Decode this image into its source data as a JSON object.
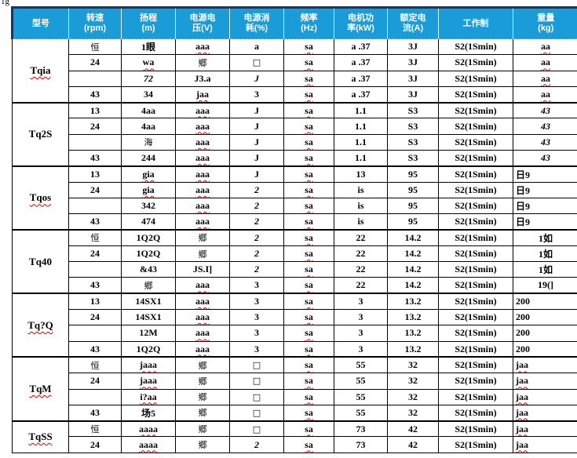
{
  "page": {
    "corner_mark": "1g"
  },
  "colors": {
    "header_bg": "#199CD8",
    "header_border": "#17375E",
    "wavy_underline": "#E00000"
  },
  "table": {
    "headers": [
      {
        "line1": "型号",
        "line2": ""
      },
      {
        "line1": "转速",
        "line2": "(rpm)"
      },
      {
        "line1": "扬程",
        "line2": "(m)"
      },
      {
        "line1": "电源电",
        "line2": "压(V)"
      },
      {
        "line1": "电源消",
        "line2": "耗(%)"
      },
      {
        "line1": "频率",
        "line2": "(Hz)"
      },
      {
        "line1": "电机功",
        "line2": "率(kW)"
      },
      {
        "line1": "额定电",
        "line2": "流(A)"
      },
      {
        "line1": "工作制",
        "line2": ""
      },
      {
        "line1": "重量",
        "line2": "(kg)"
      }
    ],
    "groups": [
      {
        "model": "Tqia",
        "wavy": true,
        "rows": [
          [
            {
              "t": "恒",
              "f": "k"
            },
            {
              "t": "1眼"
            },
            {
              "t": "aaa",
              "f": "w"
            },
            {
              "t": "a"
            },
            {
              "t": "sa",
              "f": "w"
            },
            {
              "t": "a .37"
            },
            {
              "t": "3J"
            },
            {
              "t": "S2(1Smin)"
            },
            {
              "t": "aa",
              "f": "w"
            }
          ],
          [
            {
              "t": "24"
            },
            {
              "t": "wa",
              "f": "w"
            },
            {
              "t": "郷",
              "f": "k"
            },
            {
              "t": "□",
              "f": "k"
            },
            {
              "t": "sa",
              "f": "w"
            },
            {
              "t": "a .37"
            },
            {
              "t": "3J"
            },
            {
              "t": "S2(1Smin)"
            },
            {
              "t": "aa",
              "f": "w"
            }
          ],
          [
            {
              "t": ""
            },
            {
              "t": "72",
              "f": "i"
            },
            {
              "t": "J3.a"
            },
            {
              "t": "J",
              "f": "i"
            },
            {
              "t": "sa",
              "f": "w"
            },
            {
              "t": "a .37"
            },
            {
              "t": "3J"
            },
            {
              "t": "S2(1Smin)"
            },
            {
              "t": "aa",
              "f": "w"
            }
          ],
          [
            {
              "t": "43"
            },
            {
              "t": "34"
            },
            {
              "t": "jaa",
              "f": "w"
            },
            {
              "t": "3"
            },
            {
              "t": "sa",
              "f": "w"
            },
            {
              "t": "a .37"
            },
            {
              "t": "3J"
            },
            {
              "t": "S2(1Smin)"
            },
            {
              "t": "aa",
              "f": "w"
            }
          ]
        ]
      },
      {
        "model": "Tq2S",
        "wavy": false,
        "rows": [
          [
            {
              "t": "13"
            },
            {
              "t": "4aa"
            },
            {
              "t": "aaa",
              "f": "w"
            },
            {
              "t": "J"
            },
            {
              "t": "sa",
              "f": "w"
            },
            {
              "t": "1.1"
            },
            {
              "t": "S3"
            },
            {
              "t": "S2(1Smin)"
            },
            {
              "t": "43",
              "f": "i"
            }
          ],
          [
            {
              "t": "24"
            },
            {
              "t": "4aa"
            },
            {
              "t": "aaa",
              "f": "w"
            },
            {
              "t": "J"
            },
            {
              "t": "sa",
              "f": "w"
            },
            {
              "t": "1.1"
            },
            {
              "t": "S3"
            },
            {
              "t": "S2(1Smin)"
            },
            {
              "t": "43",
              "f": "i"
            }
          ],
          [
            {
              "t": ""
            },
            {
              "t": "海",
              "f": "k"
            },
            {
              "t": "aaa",
              "f": "w"
            },
            {
              "t": "J"
            },
            {
              "t": "sa",
              "f": "w"
            },
            {
              "t": "1.1"
            },
            {
              "t": "S3"
            },
            {
              "t": "S2(1Smin)"
            },
            {
              "t": "43",
              "f": "i"
            }
          ],
          [
            {
              "t": "43"
            },
            {
              "t": "244"
            },
            {
              "t": "aaa",
              "f": "w"
            },
            {
              "t": "J"
            },
            {
              "t": "sa",
              "f": "w"
            },
            {
              "t": "1.1"
            },
            {
              "t": "S3"
            },
            {
              "t": "S2(1Smin)"
            },
            {
              "t": "43",
              "f": "i"
            }
          ]
        ]
      },
      {
        "model": "Tqos",
        "wavy": true,
        "rows": [
          [
            {
              "t": "13"
            },
            {
              "t": "gia",
              "f": "w"
            },
            {
              "t": "aaa",
              "f": "w"
            },
            {
              "t": "J"
            },
            {
              "t": "sa",
              "f": "w"
            },
            {
              "t": "13"
            },
            {
              "t": "95"
            },
            {
              "t": "S2(1Smin)"
            },
            {
              "t": "日9",
              "f": "l"
            }
          ],
          [
            {
              "t": "24"
            },
            {
              "t": "gia",
              "f": "w"
            },
            {
              "t": "aaa",
              "f": "w"
            },
            {
              "t": "2",
              "f": "i"
            },
            {
              "t": "sa",
              "f": "w"
            },
            {
              "t": "is"
            },
            {
              "t": "95"
            },
            {
              "t": "S2(1Smin)"
            },
            {
              "t": "日9",
              "f": "l"
            }
          ],
          [
            {
              "t": ""
            },
            {
              "t": "342"
            },
            {
              "t": "aaa",
              "f": "w"
            },
            {
              "t": "2",
              "f": "i"
            },
            {
              "t": "sa",
              "f": "w"
            },
            {
              "t": "is"
            },
            {
              "t": "95"
            },
            {
              "t": "S2(1Smin)"
            },
            {
              "t": "日9",
              "f": "l"
            }
          ],
          [
            {
              "t": "43"
            },
            {
              "t": "474"
            },
            {
              "t": "aaa",
              "f": "w"
            },
            {
              "t": "2",
              "f": "i"
            },
            {
              "t": "sa",
              "f": "w"
            },
            {
              "t": "is"
            },
            {
              "t": "95"
            },
            {
              "t": "S2(1Smin)"
            },
            {
              "t": "日9",
              "f": "l"
            }
          ]
        ]
      },
      {
        "model": "Tq40",
        "wavy": false,
        "rows": [
          [
            {
              "t": "恒",
              "f": "k"
            },
            {
              "t": "1Q2Q"
            },
            {
              "t": "郷",
              "f": "k"
            },
            {
              "t": "2",
              "f": "i"
            },
            {
              "t": "sa",
              "f": "w"
            },
            {
              "t": "22"
            },
            {
              "t": "14.2"
            },
            {
              "t": "S2(1Smin)"
            },
            {
              "t": "1如"
            }
          ],
          [
            {
              "t": "24"
            },
            {
              "t": "1Q2Q"
            },
            {
              "t": "郷",
              "f": "k"
            },
            {
              "t": "2",
              "f": "i"
            },
            {
              "t": "sa",
              "f": "w"
            },
            {
              "t": "22"
            },
            {
              "t": "14.2"
            },
            {
              "t": "S2(1Smin)"
            },
            {
              "t": "1如"
            }
          ],
          [
            {
              "t": ""
            },
            {
              "t": "&43"
            },
            {
              "t": "JS.I]"
            },
            {
              "t": "2",
              "f": "i"
            },
            {
              "t": "sa",
              "f": "w"
            },
            {
              "t": "22"
            },
            {
              "t": "14.2"
            },
            {
              "t": "S2(1Smin)"
            },
            {
              "t": "1如"
            }
          ],
          [
            {
              "t": "43"
            },
            {
              "t": "郷",
              "f": "k"
            },
            {
              "t": "aaa",
              "f": "w"
            },
            {
              "t": "3"
            },
            {
              "t": "sa",
              "f": "w"
            },
            {
              "t": "22"
            },
            {
              "t": "14.2"
            },
            {
              "t": "S2(1Smin)"
            },
            {
              "t": "19(]"
            }
          ]
        ]
      },
      {
        "model": "Tq?Q",
        "wavy": true,
        "rows": [
          [
            {
              "t": "13"
            },
            {
              "t": "14SX1"
            },
            {
              "t": "aaa",
              "f": "w"
            },
            {
              "t": "3"
            },
            {
              "t": "sa",
              "f": "w"
            },
            {
              "t": "3"
            },
            {
              "t": "13.2"
            },
            {
              "t": "S2(1Smin)"
            },
            {
              "t": "200",
              "f": "l"
            }
          ],
          [
            {
              "t": "24"
            },
            {
              "t": "14SX1"
            },
            {
              "t": "aaa",
              "f": "w"
            },
            {
              "t": "3"
            },
            {
              "t": "sa",
              "f": "w"
            },
            {
              "t": "3"
            },
            {
              "t": "13.2"
            },
            {
              "t": "S2(1Smin)"
            },
            {
              "t": "200",
              "f": "l"
            }
          ],
          [
            {
              "t": ""
            },
            {
              "t": "12M"
            },
            {
              "t": "aaa",
              "f": "w"
            },
            {
              "t": "3"
            },
            {
              "t": "sa",
              "f": "w"
            },
            {
              "t": "3"
            },
            {
              "t": "13.2"
            },
            {
              "t": "S2(1Smin)"
            },
            {
              "t": "200",
              "f": "l"
            }
          ],
          [
            {
              "t": "43"
            },
            {
              "t": "1Q2Q"
            },
            {
              "t": "aaa",
              "f": "w"
            },
            {
              "t": "3"
            },
            {
              "t": "sa",
              "f": "w"
            },
            {
              "t": "3"
            },
            {
              "t": "13.2"
            },
            {
              "t": "S2(1Smin)"
            },
            {
              "t": "200",
              "f": "l"
            }
          ]
        ]
      },
      {
        "model": "TqM",
        "wavy": true,
        "rows": [
          [
            {
              "t": "恒",
              "f": "k"
            },
            {
              "t": "jaaa",
              "f": "w"
            },
            {
              "t": "郷",
              "f": "k"
            },
            {
              "t": "□",
              "f": "k"
            },
            {
              "t": "sa",
              "f": "w"
            },
            {
              "t": "55"
            },
            {
              "t": "32"
            },
            {
              "t": "S2(1Smin)"
            },
            {
              "t": "jaa",
              "f": "wl"
            }
          ],
          [
            {
              "t": "24"
            },
            {
              "t": "jaaa",
              "f": "w"
            },
            {
              "t": "郷",
              "f": "k"
            },
            {
              "t": "□",
              "f": "k"
            },
            {
              "t": "sa",
              "f": "w"
            },
            {
              "t": "55"
            },
            {
              "t": "32"
            },
            {
              "t": "S2(1Smin)"
            },
            {
              "t": "jaa",
              "f": "wl"
            }
          ],
          [
            {
              "t": ""
            },
            {
              "t": "i?aa",
              "f": "w"
            },
            {
              "t": "郷",
              "f": "k"
            },
            {
              "t": "□",
              "f": "k"
            },
            {
              "t": "sa",
              "f": "w"
            },
            {
              "t": "55"
            },
            {
              "t": "32"
            },
            {
              "t": "S2(1Smin)"
            },
            {
              "t": "jaa",
              "f": "wl"
            }
          ],
          [
            {
              "t": "43"
            },
            {
              "t": "场5"
            },
            {
              "t": "郷",
              "f": "k"
            },
            {
              "t": "□",
              "f": "k"
            },
            {
              "t": "sa",
              "f": "w"
            },
            {
              "t": "55"
            },
            {
              "t": "32"
            },
            {
              "t": "S2(1Smin)"
            },
            {
              "t": "jaa",
              "f": "wl"
            }
          ]
        ]
      },
      {
        "model": "TqSS",
        "wavy": true,
        "rows": [
          [
            {
              "t": "恒",
              "f": "k"
            },
            {
              "t": "aaaa",
              "f": "w"
            },
            {
              "t": "郷",
              "f": "k"
            },
            {
              "t": "□",
              "f": "k"
            },
            {
              "t": "sa",
              "f": "w"
            },
            {
              "t": "73"
            },
            {
              "t": "42"
            },
            {
              "t": "S2(1Smin)"
            },
            {
              "t": "jaa",
              "f": "wl"
            }
          ],
          [
            {
              "t": "24"
            },
            {
              "t": "aaaa",
              "f": "w"
            },
            {
              "t": "郷",
              "f": "k"
            },
            {
              "t": "2",
              "f": "i"
            },
            {
              "t": "sa",
              "f": "w"
            },
            {
              "t": "73"
            },
            {
              "t": "42"
            },
            {
              "t": "S2(1Smin)"
            },
            {
              "t": "jaa",
              "f": "wl"
            }
          ]
        ]
      }
    ]
  }
}
